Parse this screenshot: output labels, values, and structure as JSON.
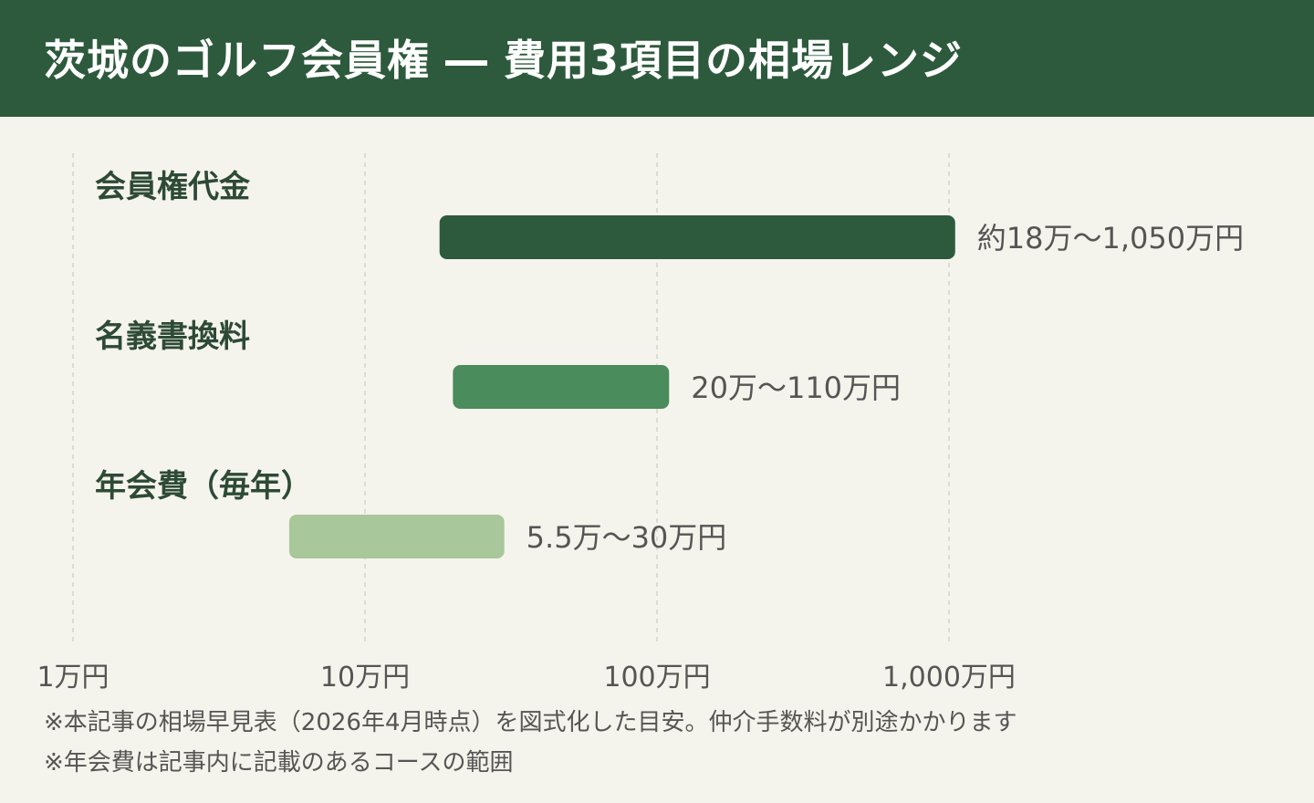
{
  "header": {
    "title": "茨城のゴルフ会員権 ― 費用3項目の相場レンジ"
  },
  "chart_data": {
    "type": "range-bar",
    "scale": "log",
    "unit": "万円",
    "xlim": [
      1,
      1050
    ],
    "x_ticks": [
      {
        "value": 1,
        "label": "1万円"
      },
      {
        "value": 10,
        "label": "10万円"
      },
      {
        "value": 100,
        "label": "100万円"
      },
      {
        "value": 1000,
        "label": "1,000万円"
      }
    ],
    "grid": true,
    "series": [
      {
        "name": "会員権代金",
        "min": 18,
        "max": 1050,
        "label": "約18万〜1,050万円",
        "color": "#2d5a3c"
      },
      {
        "name": "名義書換料",
        "min": 20,
        "max": 110,
        "label": "20万〜110万円",
        "color": "#4a8c5c"
      },
      {
        "name": "年会費（毎年）",
        "min": 5.5,
        "max": 30,
        "label": "5.5万〜30万円",
        "color": "#a8c79a"
      }
    ]
  },
  "notes": [
    "※本記事の相場早見表（2026年4月時点）を図式化した目安。仲介手数料が別途かかります",
    "※年会費は記事内に記載のあるコースの範囲"
  ],
  "colors": {
    "header_bg": "#2d5a3c",
    "background": "#f5f4ec",
    "label_text": "#2d4a35",
    "value_text": "#555555",
    "grid": "#d4d2c8"
  }
}
